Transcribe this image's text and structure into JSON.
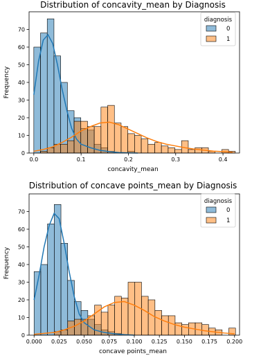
{
  "colors": {
    "class_0_fill": "#1f77b4",
    "class_1_fill": "#ff7f0e",
    "class_0_kde": "#1f77b4",
    "class_1_kde": "#ff7f0e"
  },
  "chart_data": [
    {
      "type": "bar",
      "subtype": "histogram-with-kde",
      "title": "Distribution of concavity_mean by Diagnosis",
      "xlabel": "concavity_mean",
      "ylabel": "Frequency",
      "xlim": [
        -0.01,
        0.435
      ],
      "ylim": [
        0,
        80
      ],
      "xticks": [
        0.0,
        0.1,
        0.2,
        0.3,
        0.4
      ],
      "xtick_labels": [
        "0.0",
        "0.1",
        "0.2",
        "0.3",
        "0.4"
      ],
      "yticks": [
        0,
        10,
        20,
        30,
        40,
        50,
        60,
        70
      ],
      "ytick_labels": [
        "0",
        "10",
        "20",
        "30",
        "40",
        "50",
        "60",
        "70"
      ],
      "grid": false,
      "legend": {
        "title": "diagnosis",
        "placement": "top-right",
        "entries": [
          "0",
          "1"
        ]
      },
      "bin_start": 0.0,
      "bin_width": 0.0142,
      "series": [
        {
          "name": "0",
          "values": [
            60,
            68,
            76,
            55,
            40,
            24,
            20,
            14,
            13,
            5,
            3,
            1,
            0,
            0,
            1,
            0,
            0,
            0,
            0,
            0,
            0,
            0,
            0,
            0,
            0,
            0,
            0,
            0,
            0,
            0
          ]
        },
        {
          "name": "1",
          "values": [
            0,
            1,
            3,
            5,
            5,
            7,
            18,
            18,
            15,
            15,
            26,
            27,
            17,
            15,
            11,
            10,
            8,
            5,
            6,
            4,
            3,
            2,
            7,
            2,
            3,
            3,
            1,
            0,
            2,
            1
          ]
        }
      ],
      "kde": [
        {
          "name": "0",
          "x": [
            0.0,
            0.01,
            0.02,
            0.03,
            0.04,
            0.05,
            0.06,
            0.07,
            0.08,
            0.09,
            0.1,
            0.12,
            0.14,
            0.16,
            0.18,
            0.2,
            0.22
          ],
          "y": [
            33,
            52,
            64,
            67,
            62,
            50,
            36,
            24,
            14,
            8,
            5,
            3,
            1.5,
            0.8,
            0.3,
            0.1,
            0
          ]
        },
        {
          "name": "1",
          "x": [
            0.0,
            0.02,
            0.04,
            0.06,
            0.08,
            0.1,
            0.12,
            0.14,
            0.16,
            0.18,
            0.2,
            0.22,
            0.24,
            0.26,
            0.28,
            0.3,
            0.32,
            0.34,
            0.36,
            0.38,
            0.4,
            0.42
          ],
          "y": [
            1,
            2,
            3.5,
            6,
            9,
            12.5,
            15,
            17,
            17.5,
            16,
            13.5,
            11,
            8.5,
            6.5,
            5,
            4,
            3,
            2.2,
            1.6,
            1.1,
            0.8,
            0.5
          ]
        }
      ]
    },
    {
      "type": "bar",
      "subtype": "histogram-with-kde",
      "title": "Distribution of concave points_mean by Diagnosis",
      "xlabel": "concave points_mean",
      "ylabel": "Frequency",
      "xlim": [
        -0.005,
        0.205
      ],
      "ylim": [
        0,
        80
      ],
      "xticks": [
        0.0,
        0.025,
        0.05,
        0.075,
        0.1,
        0.125,
        0.15,
        0.175,
        0.2
      ],
      "xtick_labels": [
        "0.000",
        "0.025",
        "0.050",
        "0.075",
        "0.100",
        "0.125",
        "0.150",
        "0.175",
        "0.200"
      ],
      "yticks": [
        0,
        10,
        20,
        30,
        40,
        50,
        60,
        70
      ],
      "ytick_labels": [
        "0",
        "10",
        "20",
        "30",
        "40",
        "50",
        "60",
        "70"
      ],
      "grid": false,
      "legend": {
        "title": "diagnosis",
        "placement": "top-right",
        "entries": [
          "0",
          "1"
        ]
      },
      "bin_start": 0.0,
      "bin_width": 0.0067,
      "series": [
        {
          "name": "0",
          "values": [
            36,
            40,
            63,
            74,
            52,
            31,
            19,
            14,
            9,
            6,
            3,
            2,
            1,
            0,
            0,
            0,
            0,
            0,
            0,
            0,
            0,
            0,
            0,
            0,
            0,
            0,
            0,
            0,
            0,
            0
          ]
        },
        {
          "name": "1",
          "values": [
            0,
            0,
            0,
            2,
            3,
            8,
            9,
            9,
            11,
            17,
            13,
            17,
            22,
            21,
            30,
            30,
            22,
            20,
            14,
            11,
            11,
            7,
            6,
            7,
            7,
            6,
            4,
            3,
            0,
            4
          ]
        }
      ],
      "kde": [
        {
          "name": "0",
          "x": [
            0.0,
            0.005,
            0.01,
            0.015,
            0.02,
            0.025,
            0.03,
            0.035,
            0.04,
            0.045,
            0.05,
            0.06,
            0.07,
            0.08,
            0.09,
            0.1
          ],
          "y": [
            20,
            34,
            50,
            62,
            69,
            66,
            52,
            36,
            22,
            12,
            7,
            3,
            1.5,
            0.8,
            0.3,
            0
          ]
        },
        {
          "name": "1",
          "x": [
            0.0,
            0.02,
            0.03,
            0.04,
            0.05,
            0.06,
            0.07,
            0.08,
            0.09,
            0.1,
            0.11,
            0.12,
            0.13,
            0.14,
            0.15,
            0.16,
            0.17,
            0.18,
            0.19,
            0.2
          ],
          "y": [
            0.5,
            1.5,
            3,
            5,
            8,
            12,
            16,
            18.5,
            19,
            17,
            14,
            10.5,
            8,
            6,
            4.5,
            3.5,
            2.5,
            1.8,
            1.2,
            0.8
          ]
        }
      ]
    }
  ]
}
